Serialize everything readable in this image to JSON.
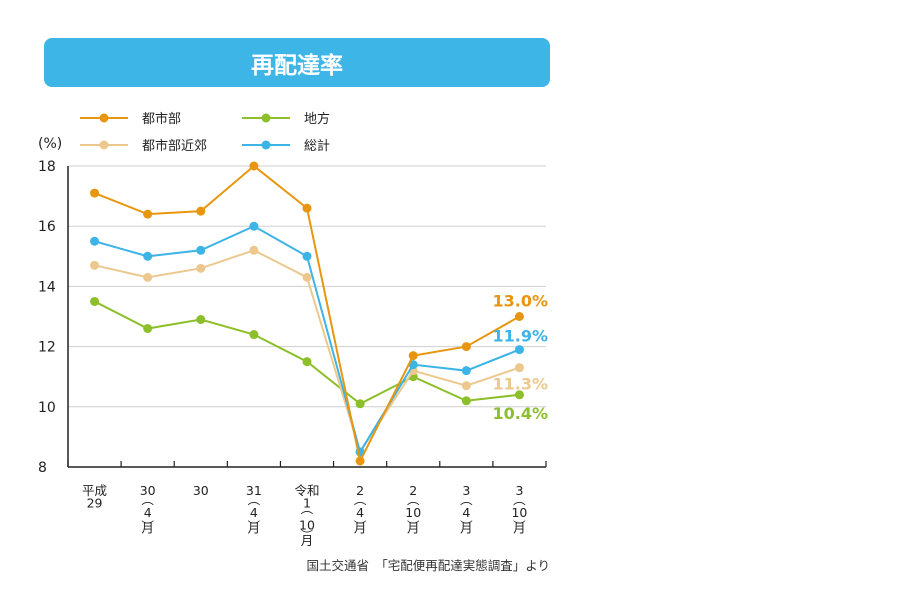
{
  "chart_data": {
    "type": "line",
    "title": "再配達率",
    "ylabel": "(%)",
    "ylim": [
      8,
      18
    ],
    "yticks": [
      8,
      10,
      12,
      14,
      16,
      18
    ],
    "grid": true,
    "legend_position": "top-left",
    "categories": [
      [
        "平成",
        "29"
      ],
      [
        "30",
        "︵",
        "4",
        "月",
        "︶"
      ],
      [
        "30"
      ],
      [
        "31",
        "︵",
        "4",
        "月",
        "︶"
      ],
      [
        "令和",
        "1",
        "︵",
        "10",
        "月",
        "︶"
      ],
      [
        "2",
        "︵",
        "4",
        "月",
        "︶"
      ],
      [
        "2",
        "︵",
        "10",
        "月",
        "︶"
      ],
      [
        "3",
        "︵",
        "4",
        "月",
        "︶"
      ],
      [
        "3",
        "︵",
        "10",
        "月",
        "︶"
      ]
    ],
    "series": [
      {
        "name": "都市部",
        "color": "#e8960f",
        "values": [
          17.1,
          16.4,
          16.5,
          18.0,
          16.6,
          8.2,
          11.7,
          12.0,
          13.0
        ],
        "end_label": "13.0%"
      },
      {
        "name": "都市部近郊",
        "color": "#ecc88f",
        "values": [
          14.7,
          14.3,
          14.6,
          15.2,
          14.3,
          8.5,
          11.2,
          10.7,
          11.3
        ],
        "end_label": "11.3%"
      },
      {
        "name": "地方",
        "color": "#8cbf2a",
        "values": [
          13.5,
          12.6,
          12.9,
          12.4,
          11.5,
          10.1,
          11.0,
          10.2,
          10.4
        ],
        "end_label": "10.4%"
      },
      {
        "name": "総計",
        "color": "#3cb4e6",
        "values": [
          15.5,
          15.0,
          15.2,
          16.0,
          15.0,
          8.5,
          11.4,
          11.2,
          11.9
        ],
        "end_label": "11.9%"
      }
    ],
    "source": "国土交通省　「宅配便再配達実態調査」より"
  }
}
